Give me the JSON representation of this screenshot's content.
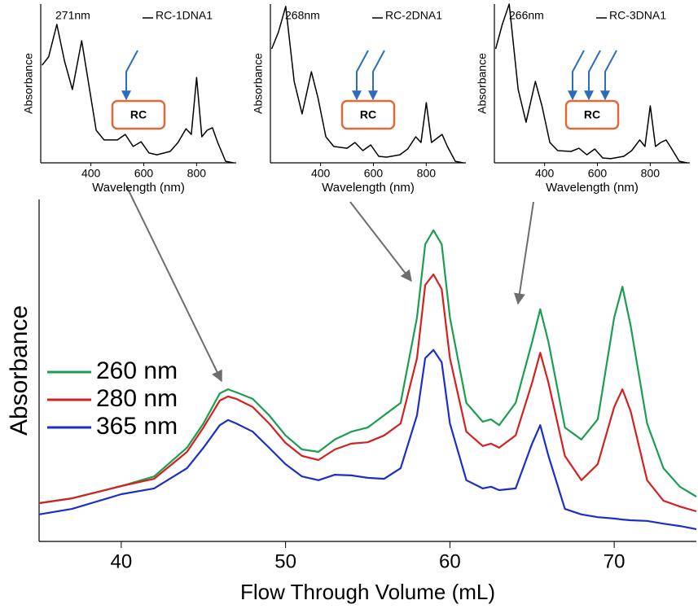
{
  "chart_data": [
    {
      "type": "line",
      "xlabel": "Flow Through Volume (mL)",
      "ylabel": "Absorbance",
      "x": [
        35,
        37,
        40,
        42,
        44,
        45,
        46,
        46.5,
        47,
        48,
        49,
        50,
        51,
        52,
        53,
        54,
        55,
        56,
        57,
        58,
        58.5,
        59,
        59.5,
        60,
        61,
        62,
        62.5,
        63,
        64,
        65,
        65.5,
        66,
        67,
        68,
        69,
        70,
        70.5,
        71,
        72,
        73,
        74,
        75
      ],
      "xlim": [
        35,
        75
      ],
      "xticks": [
        40,
        50,
        60,
        70
      ],
      "ylim": [
        0,
        1
      ],
      "legend": "left",
      "series": [
        {
          "name": "260 nm",
          "color": "#1a9e50",
          "values": [
            0.112,
            0.126,
            0.162,
            0.19,
            0.274,
            0.345,
            0.433,
            0.445,
            0.436,
            0.417,
            0.369,
            0.31,
            0.269,
            0.262,
            0.298,
            0.321,
            0.333,
            0.369,
            0.405,
            0.655,
            0.869,
            0.91,
            0.869,
            0.655,
            0.405,
            0.35,
            0.357,
            0.34,
            0.405,
            0.583,
            0.679,
            0.583,
            0.333,
            0.298,
            0.357,
            0.655,
            0.745,
            0.631,
            0.345,
            0.214,
            0.16,
            0.131
          ]
        },
        {
          "name": "280 nm",
          "color": "#d42020",
          "values": [
            0.112,
            0.126,
            0.162,
            0.183,
            0.262,
            0.333,
            0.412,
            0.424,
            0.417,
            0.393,
            0.345,
            0.288,
            0.25,
            0.238,
            0.269,
            0.286,
            0.29,
            0.31,
            0.345,
            0.536,
            0.75,
            0.781,
            0.738,
            0.536,
            0.321,
            0.279,
            0.286,
            0.274,
            0.31,
            0.464,
            0.552,
            0.464,
            0.25,
            0.179,
            0.226,
            0.393,
            0.445,
            0.381,
            0.179,
            0.119,
            0.102,
            0.088
          ]
        },
        {
          "name": "365 nm",
          "color": "#1a2fc8",
          "values": [
            0.079,
            0.095,
            0.138,
            0.155,
            0.214,
            0.274,
            0.34,
            0.355,
            0.345,
            0.321,
            0.274,
            0.226,
            0.19,
            0.179,
            0.195,
            0.193,
            0.186,
            0.183,
            0.214,
            0.369,
            0.536,
            0.56,
            0.524,
            0.345,
            0.179,
            0.155,
            0.16,
            0.15,
            0.155,
            0.286,
            0.34,
            0.25,
            0.095,
            0.079,
            0.071,
            0.067,
            0.064,
            0.062,
            0.06,
            0.052,
            0.045,
            0.036
          ]
        }
      ]
    },
    {
      "type": "line",
      "xlabel": "Wavelength (nm)",
      "ylabel": "Absorbance",
      "peak_label": "271nm",
      "box_label": "RC",
      "x": [
        215,
        240,
        271,
        300,
        330,
        365,
        390,
        420,
        450,
        500,
        530,
        560,
        590,
        620,
        650,
        700,
        730,
        760,
        780,
        800,
        820,
        840,
        860,
        880,
        910,
        940
      ],
      "xlim": [
        210,
        950
      ],
      "xticks": [
        400,
        600,
        800
      ],
      "ylim": [
        0,
        1
      ],
      "series": [
        {
          "name": "RC-1DNA1",
          "color": "#000000",
          "values": [
            0.615,
            0.667,
            0.872,
            0.641,
            0.462,
            0.769,
            0.513,
            0.205,
            0.144,
            0.144,
            0.179,
            0.103,
            0.133,
            0.062,
            0.051,
            0.072,
            0.128,
            0.215,
            0.179,
            0.538,
            0.164,
            0.205,
            0.221,
            0.128,
            0.01,
            0
          ]
        }
      ]
    },
    {
      "type": "line",
      "xlabel": "Wavelength (nm)",
      "ylabel": "Absorbance",
      "peak_label": "268nm",
      "box_label": "RC",
      "x": [
        215,
        240,
        268,
        300,
        330,
        365,
        390,
        420,
        450,
        500,
        530,
        560,
        590,
        620,
        650,
        700,
        730,
        760,
        780,
        800,
        820,
        840,
        860,
        880,
        910,
        940
      ],
      "xlim": [
        210,
        950
      ],
      "xticks": [
        400,
        600,
        800
      ],
      "ylim": [
        0,
        1
      ],
      "series": [
        {
          "name": "RC-2DNA1",
          "color": "#000000",
          "values": [
            0.718,
            0.821,
            0.985,
            0.513,
            0.308,
            0.574,
            0.41,
            0.164,
            0.103,
            0.092,
            0.128,
            0.077,
            0.113,
            0.041,
            0.036,
            0.051,
            0.087,
            0.164,
            0.128,
            0.379,
            0.128,
            0.154,
            0.179,
            0.103,
            0.01,
            0
          ]
        }
      ]
    },
    {
      "type": "line",
      "xlabel": "Wavelength (nm)",
      "ylabel": "Absorbance",
      "peak_label": "266nm",
      "box_label": "RC",
      "x": [
        215,
        240,
        266,
        300,
        330,
        365,
        390,
        420,
        450,
        500,
        530,
        560,
        590,
        620,
        650,
        700,
        730,
        760,
        780,
        800,
        820,
        840,
        860,
        880,
        910,
        940
      ],
      "xlim": [
        210,
        950
      ],
      "xticks": [
        400,
        600,
        800
      ],
      "ylim": [
        0,
        1
      ],
      "series": [
        {
          "name": "RC-3DNA1",
          "color": "#000000",
          "values": [
            0.718,
            0.872,
            1.0,
            0.462,
            0.256,
            0.513,
            0.359,
            0.128,
            0.077,
            0.072,
            0.092,
            0.051,
            0.087,
            0.031,
            0.026,
            0.041,
            0.077,
            0.144,
            0.103,
            0.359,
            0.103,
            0.128,
            0.144,
            0.092,
            0.01,
            0
          ]
        }
      ]
    }
  ]
}
